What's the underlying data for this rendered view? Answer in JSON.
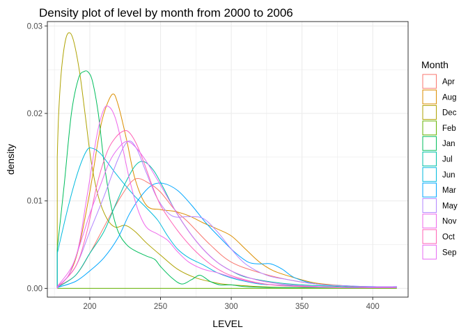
{
  "chart_data": {
    "type": "line",
    "title": "Density plot of level by month from 2000 to 2006",
    "xlabel": "LEVEL",
    "ylabel": "density",
    "xlim": [
      170,
      425
    ],
    "ylim": [
      -0.001,
      0.0305
    ],
    "xticks": [
      200,
      250,
      300,
      350,
      400
    ],
    "yticks": [
      0.0,
      0.01,
      0.02,
      0.03
    ],
    "ytick_labels": [
      "0.00",
      "0.01",
      "0.02",
      "0.03"
    ],
    "grid": true,
    "legend": {
      "title": "Month",
      "position": "right"
    },
    "series": [
      {
        "name": "Apr",
        "color": "#F8766D",
        "x": [
          177,
          190,
          200,
          210,
          222,
          232,
          242,
          250,
          260,
          270,
          285,
          300,
          320,
          340,
          360,
          380,
          400,
          417
        ],
        "y": [
          0.0002,
          0.0015,
          0.004,
          0.007,
          0.0105,
          0.0125,
          0.012,
          0.011,
          0.009,
          0.0075,
          0.005,
          0.003,
          0.0018,
          0.001,
          0.0005,
          0.0003,
          0.0001,
          0.0001
        ]
      },
      {
        "name": "Aug",
        "color": "#DB8E00",
        "x": [
          177,
          185,
          192,
          200,
          206,
          210,
          216,
          220,
          226,
          232,
          240,
          250,
          260,
          270,
          280,
          290,
          300,
          310,
          320,
          330,
          345,
          360,
          380,
          400,
          417
        ],
        "y": [
          0.0002,
          0.0015,
          0.0045,
          0.011,
          0.017,
          0.02,
          0.0222,
          0.021,
          0.017,
          0.0125,
          0.0095,
          0.009,
          0.0088,
          0.0083,
          0.0075,
          0.0068,
          0.006,
          0.0045,
          0.003,
          0.002,
          0.0012,
          0.0006,
          0.0003,
          0.0001,
          0.0001
        ]
      },
      {
        "name": "Dec",
        "color": "#AEA200",
        "x": [
          177,
          178,
          180,
          183,
          186,
          189,
          193,
          197,
          201,
          206,
          212,
          218,
          225,
          232,
          240,
          250,
          262,
          275,
          290,
          300,
          310,
          320,
          340,
          360,
          380,
          400,
          417
        ],
        "y": [
          0.015,
          0.02,
          0.025,
          0.0285,
          0.0292,
          0.028,
          0.0245,
          0.0195,
          0.0145,
          0.0105,
          0.008,
          0.007,
          0.0072,
          0.0065,
          0.0052,
          0.0038,
          0.0022,
          0.0012,
          0.0006,
          0.0004,
          0.0003,
          0.0002,
          0.0001,
          0.0001,
          0.0001,
          0.0001,
          0.0001
        ]
      },
      {
        "name": "Feb",
        "color": "#64B200",
        "x": [
          177,
          190,
          200,
          215,
          230,
          250,
          270,
          290,
          300,
          320,
          350,
          380,
          417
        ],
        "y": [
          0.0,
          0.0,
          0.0,
          0.0,
          0.0,
          0.0,
          0.0,
          0.0,
          0.0,
          0.0,
          0.0,
          0.0,
          0.0
        ]
      },
      {
        "name": "Jan",
        "color": "#00BD5C",
        "x": [
          177,
          182,
          187,
          192,
          196,
          199,
          202,
          206,
          210,
          215,
          220,
          226,
          232,
          240,
          246,
          250,
          258,
          265,
          272,
          278,
          285,
          292,
          300,
          310,
          330,
          360,
          390,
          417
        ],
        "y": [
          0.0045,
          0.012,
          0.02,
          0.024,
          0.0248,
          0.0247,
          0.0236,
          0.02,
          0.0145,
          0.0095,
          0.0065,
          0.005,
          0.0043,
          0.0037,
          0.0033,
          0.0025,
          0.0012,
          0.0005,
          0.001,
          0.0015,
          0.0008,
          0.0004,
          0.0004,
          0.0002,
          0.0001,
          0.0001,
          0.0001,
          0.0001
        ]
      },
      {
        "name": "Jul",
        "color": "#00C1A7",
        "x": [
          177,
          190,
          200,
          210,
          218,
          225,
          232,
          238,
          245,
          252,
          260,
          270,
          280,
          290,
          300,
          310,
          330,
          350,
          380,
          400,
          417
        ],
        "y": [
          0.0001,
          0.0015,
          0.004,
          0.0065,
          0.0095,
          0.012,
          0.014,
          0.0145,
          0.0135,
          0.0115,
          0.009,
          0.0065,
          0.0045,
          0.003,
          0.002,
          0.0013,
          0.0007,
          0.0004,
          0.0002,
          0.0001,
          0.0001
        ]
      },
      {
        "name": "Jun",
        "color": "#00BADE",
        "x": [
          177,
          185,
          192,
          198,
          202,
          207,
          212,
          218,
          225,
          232,
          240,
          248,
          255,
          262,
          270,
          280,
          290,
          300,
          310,
          320,
          330,
          345,
          360,
          380,
          400,
          417
        ],
        "y": [
          0.004,
          0.0095,
          0.0135,
          0.0158,
          0.016,
          0.0155,
          0.0145,
          0.0132,
          0.0118,
          0.0105,
          0.0092,
          0.0078,
          0.006,
          0.0045,
          0.0035,
          0.0027,
          0.0018,
          0.0012,
          0.0008,
          0.0005,
          0.0004,
          0.0003,
          0.0002,
          0.0001,
          0.0001,
          0.0001
        ]
      },
      {
        "name": "Mar",
        "color": "#00A6FF",
        "x": [
          177,
          190,
          200,
          210,
          220,
          228,
          236,
          244,
          252,
          262,
          272,
          282,
          292,
          302,
          312,
          320,
          328,
          336,
          345,
          360,
          380,
          400,
          417
        ],
        "y": [
          0.0001,
          0.0008,
          0.002,
          0.0035,
          0.0058,
          0.0085,
          0.0105,
          0.0118,
          0.012,
          0.0112,
          0.0095,
          0.0075,
          0.0058,
          0.0042,
          0.003,
          0.0028,
          0.0028,
          0.0022,
          0.0012,
          0.0005,
          0.0003,
          0.0002,
          0.0002
        ]
      },
      {
        "name": "May",
        "color": "#B385FF",
        "x": [
          177,
          190,
          200,
          210,
          220,
          227,
          233,
          240,
          248,
          258,
          270,
          280,
          290,
          300,
          310,
          325,
          340,
          360,
          380,
          400,
          417
        ],
        "y": [
          0.0001,
          0.0025,
          0.0065,
          0.0105,
          0.0148,
          0.0168,
          0.016,
          0.0132,
          0.0102,
          0.0083,
          0.0082,
          0.008,
          0.0065,
          0.0045,
          0.0028,
          0.0015,
          0.001,
          0.0005,
          0.0003,
          0.0002,
          0.0002
        ]
      },
      {
        "name": "Nov",
        "color": "#EF67EB",
        "x": [
          177,
          190,
          198,
          205,
          210,
          214,
          218,
          222,
          228,
          234,
          240,
          248,
          255,
          262,
          270,
          280,
          290,
          300,
          315,
          330,
          350,
          380,
          417
        ],
        "y": [
          0.0002,
          0.0035,
          0.0105,
          0.0175,
          0.0205,
          0.0207,
          0.0195,
          0.017,
          0.0125,
          0.009,
          0.007,
          0.0062,
          0.0055,
          0.0042,
          0.003,
          0.0022,
          0.0018,
          0.0013,
          0.0007,
          0.0004,
          0.0002,
          0.0001,
          0.0001
        ]
      },
      {
        "name": "Oct",
        "color": "#FF63B6",
        "x": [
          177,
          190,
          198,
          205,
          212,
          218,
          224,
          228,
          233,
          238,
          244,
          250,
          258,
          266,
          275,
          285,
          295,
          305,
          320,
          335,
          360,
          390,
          417
        ],
        "y": [
          0.0001,
          0.0025,
          0.0065,
          0.0118,
          0.0155,
          0.0172,
          0.018,
          0.0178,
          0.0165,
          0.0145,
          0.0118,
          0.0095,
          0.0075,
          0.0058,
          0.0042,
          0.0028,
          0.0018,
          0.0012,
          0.0006,
          0.0003,
          0.0002,
          0.0001,
          0.0001
        ]
      },
      {
        "name": "Sep",
        "color": "#E76BF3",
        "x": [
          177,
          185,
          192,
          200,
          208,
          214,
          220,
          226,
          232,
          240,
          250,
          260,
          270,
          280,
          290,
          300,
          315,
          330,
          350,
          380,
          417
        ],
        "y": [
          0.0001,
          0.0015,
          0.0045,
          0.0085,
          0.012,
          0.0145,
          0.016,
          0.0168,
          0.0162,
          0.0145,
          0.0118,
          0.009,
          0.0065,
          0.0045,
          0.003,
          0.002,
          0.0011,
          0.0006,
          0.0003,
          0.0001,
          0.0001
        ]
      }
    ]
  }
}
